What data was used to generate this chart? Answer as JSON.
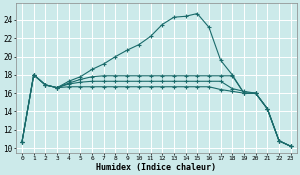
{
  "xlabel": "Humidex (Indice chaleur)",
  "bg_color": "#cceaea",
  "grid_color": "#ffffff",
  "line_color": "#1a6b6b",
  "xlim": [
    -0.5,
    23.5
  ],
  "ylim": [
    9.5,
    25.8
  ],
  "xticks": [
    0,
    1,
    2,
    3,
    4,
    5,
    6,
    7,
    8,
    9,
    10,
    11,
    12,
    13,
    14,
    15,
    16,
    17,
    18,
    19,
    20,
    21,
    22,
    23
  ],
  "yticks": [
    10,
    12,
    14,
    16,
    18,
    20,
    22,
    24
  ],
  "line1_x": [
    0,
    1,
    2,
    3,
    4,
    5,
    6,
    7,
    8,
    9,
    10,
    11,
    12,
    13,
    14,
    15,
    16,
    17,
    18,
    19,
    20,
    21,
    22,
    23
  ],
  "line1_y": [
    10.7,
    18.0,
    16.9,
    16.6,
    17.3,
    17.8,
    18.6,
    19.2,
    20.0,
    20.7,
    21.3,
    22.2,
    23.5,
    24.3,
    24.4,
    24.7,
    23.2,
    19.6,
    18.0,
    16.0,
    16.0,
    14.3,
    10.8,
    10.2
  ],
  "line2_x": [
    0,
    1,
    2,
    3,
    4,
    5,
    6,
    7,
    8,
    9,
    10,
    11,
    12,
    13,
    14,
    15,
    16,
    17,
    18,
    19,
    20,
    21,
    22,
    23
  ],
  "line2_y": [
    10.7,
    18.0,
    16.9,
    16.6,
    17.1,
    17.5,
    17.8,
    17.9,
    17.9,
    17.9,
    17.9,
    17.9,
    17.9,
    17.9,
    17.9,
    17.9,
    17.9,
    17.9,
    17.9,
    16.0,
    16.0,
    14.3,
    10.8,
    10.2
  ],
  "line3_x": [
    0,
    1,
    2,
    3,
    4,
    5,
    6,
    7,
    8,
    9,
    10,
    11,
    12,
    13,
    14,
    15,
    16,
    17,
    18,
    19,
    20,
    21,
    22,
    23
  ],
  "line3_y": [
    10.7,
    18.0,
    16.9,
    16.6,
    17.0,
    17.2,
    17.3,
    17.3,
    17.3,
    17.3,
    17.3,
    17.3,
    17.3,
    17.3,
    17.3,
    17.3,
    17.3,
    17.3,
    16.5,
    16.2,
    16.0,
    14.3,
    10.8,
    10.2
  ],
  "line4_x": [
    0,
    1,
    2,
    3,
    4,
    5,
    6,
    7,
    8,
    9,
    10,
    11,
    12,
    13,
    14,
    15,
    16,
    17,
    18,
    19,
    20,
    21,
    22,
    23
  ],
  "line4_y": [
    10.7,
    18.0,
    16.9,
    16.6,
    16.7,
    16.7,
    16.7,
    16.7,
    16.7,
    16.7,
    16.7,
    16.7,
    16.7,
    16.7,
    16.7,
    16.7,
    16.7,
    16.4,
    16.2,
    16.0,
    16.0,
    14.3,
    10.8,
    10.2
  ]
}
